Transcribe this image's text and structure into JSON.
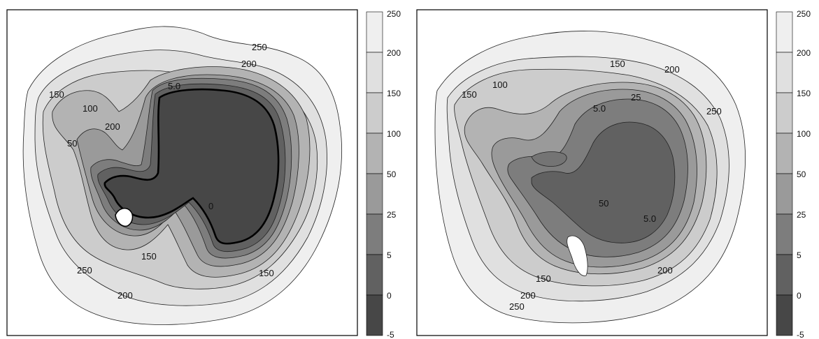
{
  "chart_data": [
    {
      "type": "heatmap",
      "colorbar": {
        "ticks": [
          "250",
          "200",
          "150",
          "100",
          "50",
          "25",
          "5",
          "0",
          "-5"
        ],
        "band_colors": [
          "#efefef",
          "#e0e0e0",
          "#cccccc",
          "#b3b3b3",
          "#9a9a9a",
          "#7d7d7d",
          "#616161",
          "#474747"
        ]
      },
      "contour_labels": [
        "200",
        "250",
        "200",
        "150",
        "100",
        "50",
        "5.0",
        "0",
        "150",
        "250",
        "200",
        "150"
      ]
    },
    {
      "type": "heatmap",
      "colorbar": {
        "ticks": [
          "250",
          "200",
          "150",
          "100",
          "50",
          "25",
          "5",
          "0",
          "-5"
        ],
        "band_colors": [
          "#efefef",
          "#e0e0e0",
          "#cccccc",
          "#b3b3b3",
          "#9a9a9a",
          "#7d7d7d",
          "#616161",
          "#474747"
        ]
      },
      "contour_labels": [
        "150",
        "100",
        "150",
        "200",
        "250",
        "25",
        "5.0",
        "5.0",
        "150",
        "200",
        "250",
        "200",
        "50"
      ]
    }
  ]
}
